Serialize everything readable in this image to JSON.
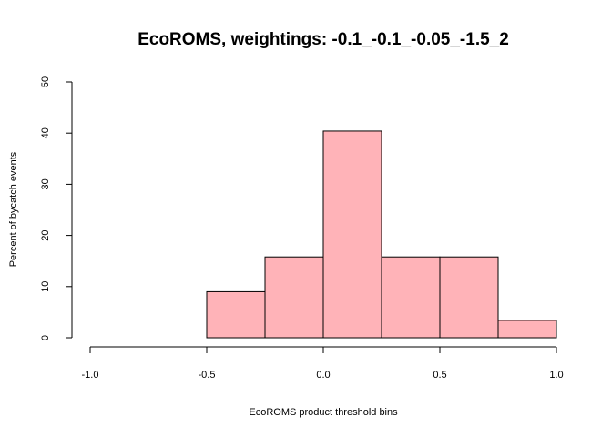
{
  "chart_data": {
    "type": "bar",
    "title": "EcoROMS, weightings: -0.1_-0.1_-0.05_-1.5_2",
    "xlabel": "EcoROMS product threshold bins",
    "ylabel": "Percent of bycatch events",
    "bins": [
      {
        "x0": -1.0,
        "x1": -0.75,
        "value": 0
      },
      {
        "x0": -0.75,
        "x1": -0.5,
        "value": 0
      },
      {
        "x0": -0.5,
        "x1": -0.25,
        "value": 9
      },
      {
        "x0": -0.25,
        "x1": 0.0,
        "value": 15.8
      },
      {
        "x0": 0.0,
        "x1": 0.25,
        "value": 40.4
      },
      {
        "x0": 0.25,
        "x1": 0.5,
        "value": 15.8
      },
      {
        "x0": 0.5,
        "x1": 0.75,
        "value": 15.8
      },
      {
        "x0": 0.75,
        "x1": 1.0,
        "value": 3.4
      }
    ],
    "xlim": [
      -1.0,
      1.0
    ],
    "ylim": [
      0,
      50
    ],
    "x_ticks": [
      -1.0,
      -0.5,
      0.0,
      0.5,
      1.0
    ],
    "x_tick_labels": [
      "-1.0",
      "-0.5",
      "0.0",
      "0.5",
      "1.0"
    ],
    "y_ticks": [
      0,
      10,
      20,
      30,
      40,
      50
    ],
    "y_tick_labels": [
      "0",
      "10",
      "20",
      "30",
      "40",
      "50"
    ],
    "bar_color": "#FFB3B8",
    "border_color": "#000000",
    "grid": false
  }
}
